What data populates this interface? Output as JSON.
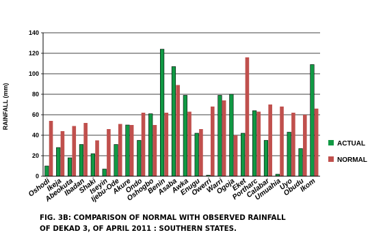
{
  "chart_data": {
    "type": "bar",
    "categories": [
      "Oshodi",
      "Ikeja",
      "Abeokuta",
      "Ibadan",
      "Shaki",
      "Iseyin",
      "Ijebu-Ode",
      "Akure",
      "Ondo",
      "Oshogbo",
      "Benin",
      "Asaba",
      "Awka",
      "Enugu",
      "Owerri",
      "Warri",
      "Ogoja",
      "Eket",
      "Portharc",
      "Calabar",
      "Umuahia",
      "Uyo",
      "Obudu",
      "Ikom"
    ],
    "series": [
      {
        "name": "ACTUAL",
        "color": "#119944",
        "values": [
          10,
          28,
          18,
          31,
          22,
          7,
          31,
          50,
          35,
          61,
          124,
          107,
          79,
          42,
          1,
          79,
          80,
          42,
          64,
          35,
          2,
          43,
          27,
          109
        ]
      },
      {
        "name": "NORMAL",
        "color": "#c0504d",
        "values": [
          54,
          44,
          49,
          52,
          35,
          46,
          51,
          50,
          62,
          50,
          62,
          89,
          63,
          46,
          68,
          74,
          40,
          116,
          63,
          70,
          68,
          62,
          60,
          66
        ]
      }
    ],
    "xlabel": "",
    "ylabel": "RAINFALL (mm)",
    "ylim": [
      0,
      140
    ],
    "yticks": [
      0,
      20,
      40,
      60,
      80,
      100,
      120,
      140
    ],
    "grid": true,
    "legend": "right"
  },
  "caption": {
    "line1": "FIG. 3B: COMPARISON OF NORMAL  WITH OBSERVED RAINFALL",
    "line2": "OF  DEKAD 3, OF APRIL 2011 : SOUTHERN STATES."
  }
}
